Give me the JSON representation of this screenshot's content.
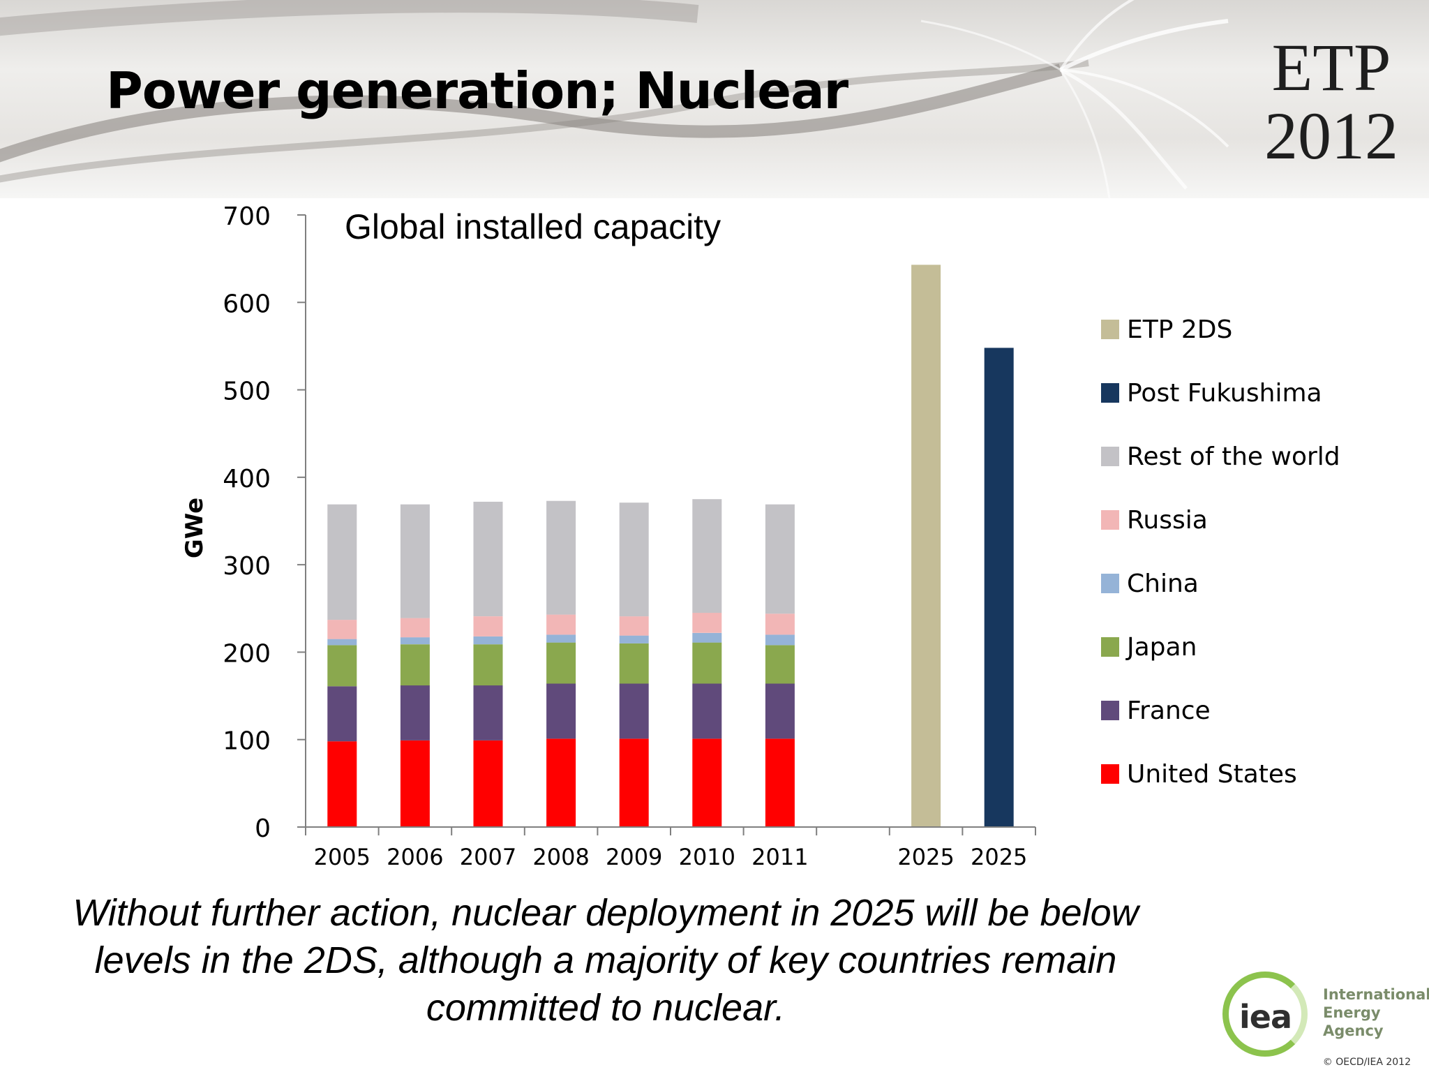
{
  "slide": {
    "title": "Power generation; Nuclear",
    "badge_line1": "ETP",
    "badge_line2": "2012",
    "footnote": "Without further action, nuclear deployment in 2025 will be below levels in the 2DS, although a majority of key countries remain committed to nuclear.",
    "org_name_line1": "International",
    "org_name_line2": "Energy Agency",
    "org_mark": "iea",
    "copyright": "© OECD/IEA 2012"
  },
  "chart_data": {
    "type": "bar",
    "stacked": true,
    "title": "Global installed capacity",
    "ylabel": "GWe",
    "ylim": [
      0,
      700
    ],
    "yticks": [
      0,
      100,
      200,
      300,
      400,
      500,
      600,
      700
    ],
    "categories": [
      "2005",
      "2006",
      "2007",
      "2008",
      "2009",
      "2010",
      "2011",
      "",
      "2025",
      "2025"
    ],
    "series": [
      {
        "name": "United States",
        "color": "#ff0000",
        "values": [
          98,
          99,
          99,
          101,
          101,
          101,
          101,
          null,
          null,
          null
        ]
      },
      {
        "name": "France",
        "color": "#604a7b",
        "values": [
          63,
          63,
          63,
          63,
          63,
          63,
          63,
          null,
          null,
          null
        ]
      },
      {
        "name": "Japan",
        "color": "#8aa84e",
        "values": [
          47,
          47,
          47,
          47,
          46,
          47,
          44,
          null,
          null,
          null
        ]
      },
      {
        "name": "China",
        "color": "#95b3d7",
        "values": [
          7,
          8,
          9,
          9,
          9,
          11,
          12,
          null,
          null,
          null
        ]
      },
      {
        "name": "Russia",
        "color": "#f2b6b6",
        "values": [
          22,
          22,
          23,
          23,
          22,
          23,
          24,
          null,
          null,
          null
        ]
      },
      {
        "name": "Rest of the world",
        "color": "#c3c2c6",
        "values": [
          132,
          130,
          131,
          130,
          130,
          130,
          125,
          null,
          null,
          null
        ]
      },
      {
        "name": "Post Fukushima",
        "color": "#17375e",
        "values": [
          null,
          null,
          null,
          null,
          null,
          null,
          null,
          null,
          null,
          548
        ]
      },
      {
        "name": "ETP 2DS",
        "color": "#c4bd97",
        "values": [
          null,
          null,
          null,
          null,
          null,
          null,
          null,
          null,
          643,
          null
        ]
      }
    ],
    "legend": [
      "ETP 2DS",
      "Post Fukushima",
      "Rest of the world",
      "Russia",
      "China",
      "Japan",
      "France",
      "United States"
    ],
    "legend_position": "right",
    "grid": false
  }
}
